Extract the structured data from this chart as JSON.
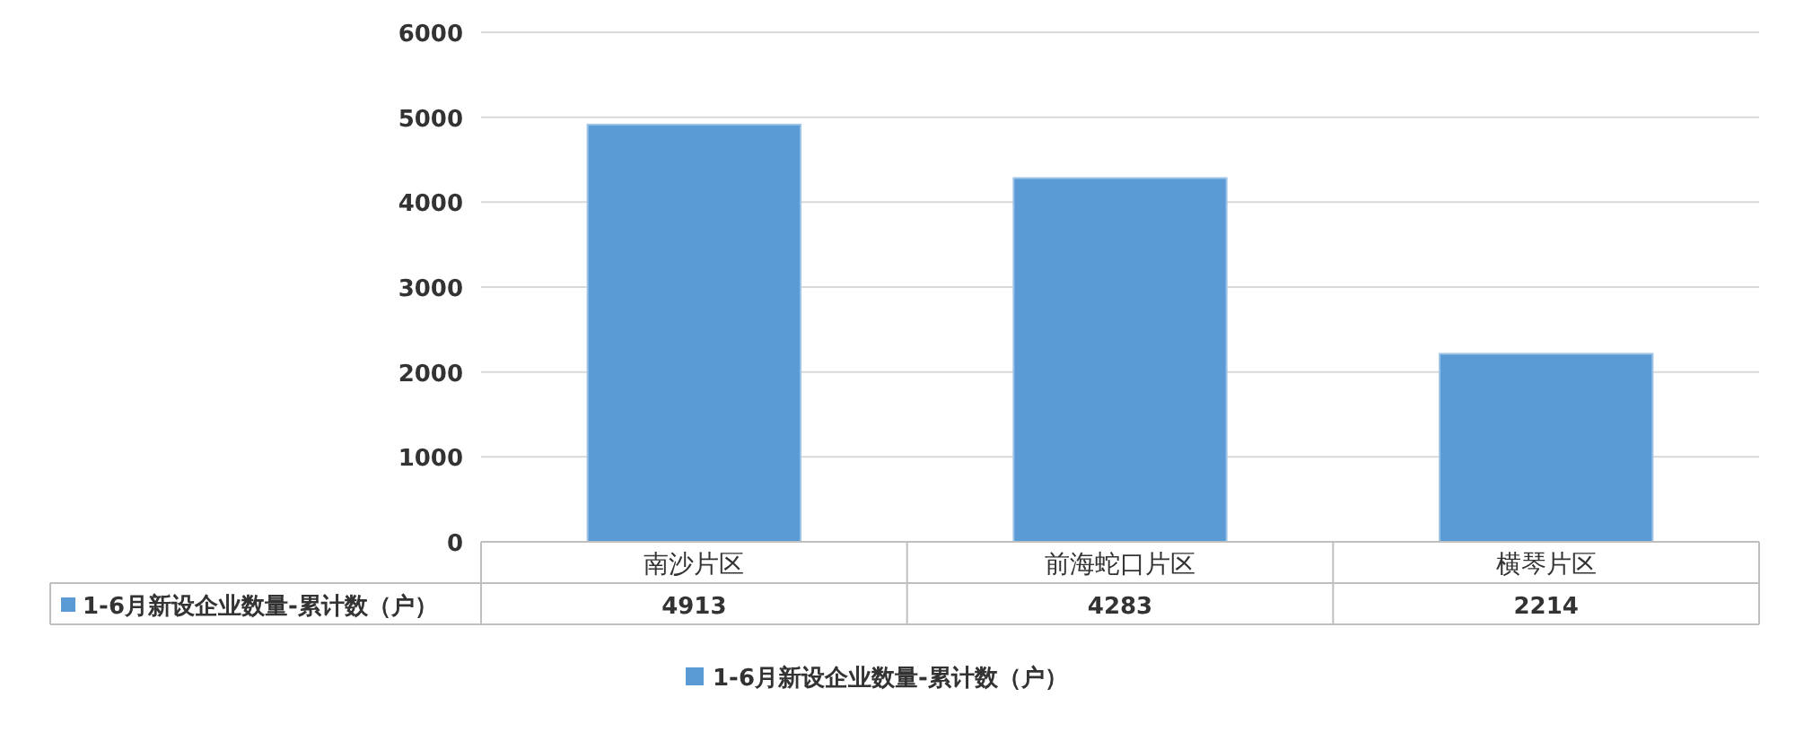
{
  "chart_data": {
    "type": "bar",
    "categories": [
      "南沙片区",
      "前海蛇口片区",
      "横琴片区"
    ],
    "series": [
      {
        "name": "1-6月新设企业数量-累计数（户）",
        "color": "#5b9bd5",
        "values": [
          4913,
          4283,
          2214
        ]
      }
    ],
    "ylim": [
      0,
      6000
    ],
    "yticks": [
      0,
      1000,
      2000,
      3000,
      4000,
      5000,
      6000
    ],
    "grid": "y",
    "legend": "bottom",
    "data_labels": true
  }
}
